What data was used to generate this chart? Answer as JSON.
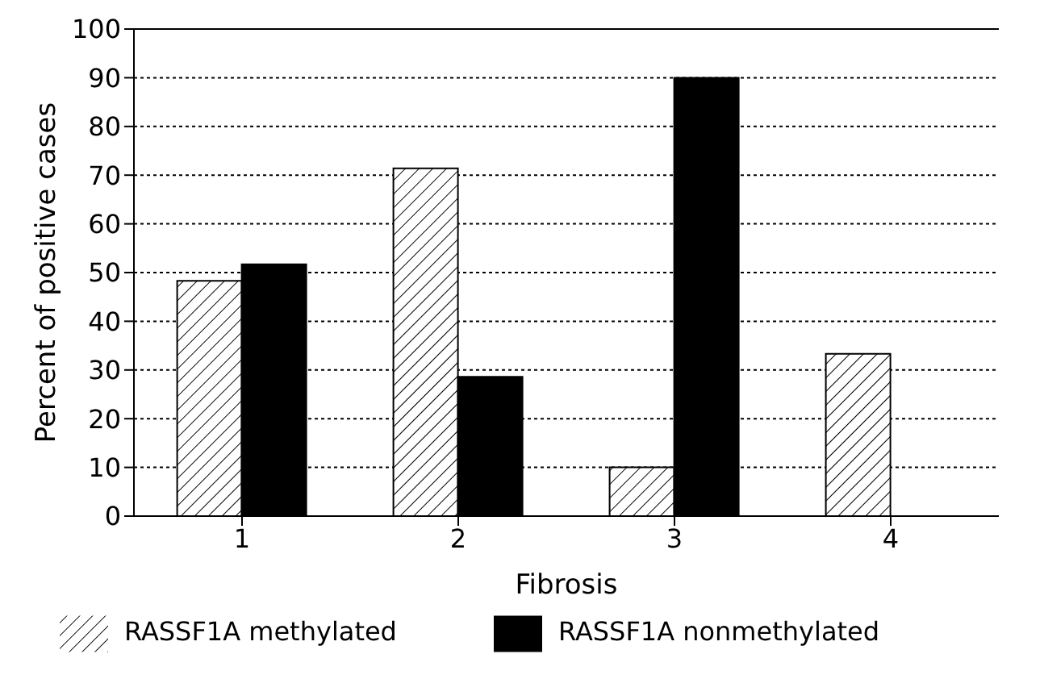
{
  "chart_data": {
    "type": "bar",
    "xlabel": "Fibrosis",
    "ylabel": "Percent of positive cases",
    "categories": [
      "1",
      "2",
      "3",
      "4"
    ],
    "series": [
      {
        "name": "RASSF1A methylated",
        "color": "#000000",
        "values": [
          48.3,
          71.4,
          10,
          33.3
        ]
      },
      {
        "name": "RASSF1A nonmethylated",
        "color": "#000000",
        "values": [
          51.7,
          28.6,
          90,
          0
        ]
      }
    ],
    "ylim": [
      0,
      100
    ],
    "yticks": [
      0,
      10,
      20,
      30,
      40,
      50,
      60,
      70,
      80,
      90,
      100
    ],
    "grid": "y",
    "legend": "bottom"
  }
}
